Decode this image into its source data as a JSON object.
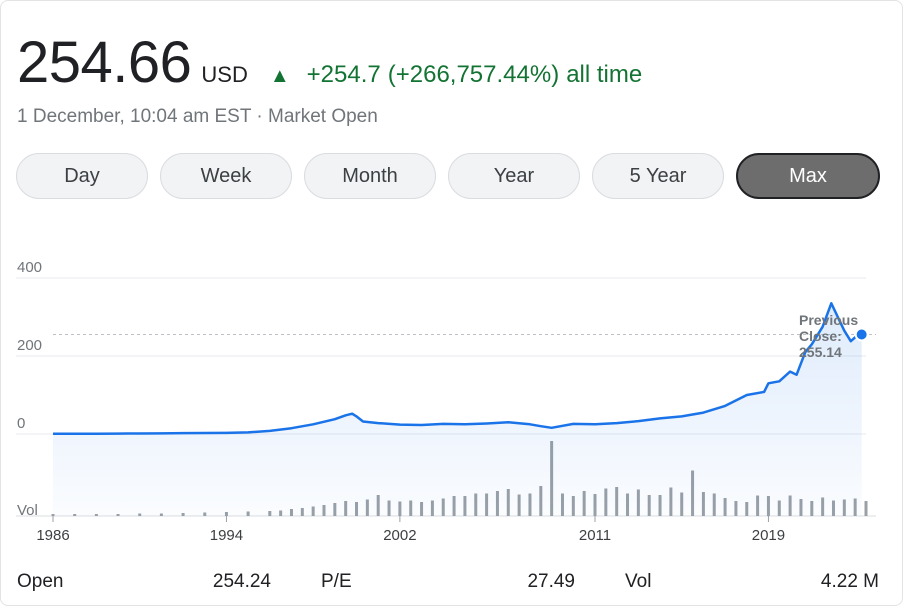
{
  "quote": {
    "price": "254.66",
    "currency": "USD",
    "change_arrow": "▲",
    "change_abs": "+254.7",
    "change_pct": "(+266,757.44%)",
    "change_period": "all time",
    "timestamp": "1 December, 10:04 am EST · Market Open"
  },
  "tabs": [
    {
      "label": "Day",
      "active": false
    },
    {
      "label": "Week",
      "active": false
    },
    {
      "label": "Month",
      "active": false
    },
    {
      "label": "Year",
      "active": false
    },
    {
      "label": "5 Year",
      "active": false
    },
    {
      "label": "Max",
      "active": true
    }
  ],
  "colors": {
    "positive": "#137333",
    "line": "#1a73e8",
    "volume": "#9aa0a6",
    "grid": "#e8eaed"
  },
  "chart_data": {
    "type": "line",
    "y_ticks": [
      "400",
      "200",
      "0"
    ],
    "ylim": [
      0,
      400
    ],
    "x_ticks": [
      "1986",
      "1994",
      "2002",
      "2011",
      "2019"
    ],
    "xlim": [
      1986,
      2023.5
    ],
    "volume_label": "Vol",
    "previous_close_label": [
      "Previous",
      "Close:",
      "255.14"
    ],
    "previous_close": 255.14,
    "grid": true,
    "series": [
      {
        "values": [
          [
            1986.0,
            0.5
          ],
          [
            1987.0,
            0.6
          ],
          [
            1988.0,
            0.7
          ],
          [
            1989.0,
            0.9
          ],
          [
            1990.0,
            1.2
          ],
          [
            1991.0,
            1.6
          ],
          [
            1992.0,
            2.2
          ],
          [
            1993.0,
            2.5
          ],
          [
            1994.0,
            2.8
          ],
          [
            1995.0,
            4.0
          ],
          [
            1996.0,
            8.0
          ],
          [
            1997.0,
            15.0
          ],
          [
            1998.0,
            25.0
          ],
          [
            1999.0,
            38.0
          ],
          [
            1999.5,
            48.0
          ],
          [
            1999.8,
            52.0
          ],
          [
            2000.0,
            45.0
          ],
          [
            2000.3,
            32.0
          ],
          [
            2001.0,
            28.0
          ],
          [
            2002.0,
            24.0
          ],
          [
            2003.0,
            23.0
          ],
          [
            2004.0,
            26.0
          ],
          [
            2005.0,
            25.0
          ],
          [
            2006.0,
            27.0
          ],
          [
            2007.0,
            30.0
          ],
          [
            2008.0,
            25.0
          ],
          [
            2008.5,
            20.0
          ],
          [
            2009.0,
            16.0
          ],
          [
            2010.0,
            26.0
          ],
          [
            2011.0,
            25.0
          ],
          [
            2012.0,
            28.0
          ],
          [
            2013.0,
            33.0
          ],
          [
            2014.0,
            40.0
          ],
          [
            2015.0,
            45.0
          ],
          [
            2016.0,
            55.0
          ],
          [
            2017.0,
            72.0
          ],
          [
            2018.0,
            100.0
          ],
          [
            2018.8,
            108.0
          ],
          [
            2019.0,
            130.0
          ],
          [
            2019.5,
            135.0
          ],
          [
            2020.0,
            160.0
          ],
          [
            2020.3,
            152.0
          ],
          [
            2020.7,
            210.0
          ],
          [
            2021.0,
            230.0
          ],
          [
            2021.5,
            275.0
          ],
          [
            2021.9,
            335.0
          ],
          [
            2022.2,
            300.0
          ],
          [
            2022.5,
            265.0
          ],
          [
            2022.8,
            238.0
          ],
          [
            2023.0,
            248.0
          ],
          [
            2023.3,
            255.14
          ]
        ]
      }
    ],
    "volume": [
      [
        1986.0,
        4
      ],
      [
        1987.0,
        4
      ],
      [
        1988.0,
        4
      ],
      [
        1989.0,
        4
      ],
      [
        1990.0,
        5
      ],
      [
        1991.0,
        5
      ],
      [
        1992.0,
        6
      ],
      [
        1993.0,
        7
      ],
      [
        1994.0,
        8
      ],
      [
        1995.0,
        9
      ],
      [
        1996.0,
        10
      ],
      [
        1996.5,
        11
      ],
      [
        1997.0,
        14
      ],
      [
        1997.5,
        16
      ],
      [
        1998.0,
        19
      ],
      [
        1998.5,
        22
      ],
      [
        1999.0,
        26
      ],
      [
        1999.5,
        30
      ],
      [
        2000.0,
        28
      ],
      [
        2000.5,
        33
      ],
      [
        2001.0,
        42
      ],
      [
        2001.5,
        31
      ],
      [
        2002.0,
        29
      ],
      [
        2002.5,
        31
      ],
      [
        2003.0,
        28
      ],
      [
        2003.5,
        31
      ],
      [
        2004.0,
        35
      ],
      [
        2004.5,
        40
      ],
      [
        2005.0,
        40
      ],
      [
        2005.5,
        45
      ],
      [
        2006.0,
        45
      ],
      [
        2006.5,
        50
      ],
      [
        2007.0,
        54
      ],
      [
        2007.5,
        43
      ],
      [
        2008.0,
        45
      ],
      [
        2008.5,
        60
      ],
      [
        2009.0,
        150
      ],
      [
        2009.5,
        45
      ],
      [
        2010.0,
        40
      ],
      [
        2010.5,
        50
      ],
      [
        2011.0,
        44
      ],
      [
        2011.5,
        55
      ],
      [
        2012.0,
        58
      ],
      [
        2012.5,
        45
      ],
      [
        2013.0,
        53
      ],
      [
        2013.5,
        42
      ],
      [
        2014.0,
        42
      ],
      [
        2014.5,
        57
      ],
      [
        2015.0,
        47
      ],
      [
        2015.5,
        91
      ],
      [
        2016.0,
        48
      ],
      [
        2016.5,
        45
      ],
      [
        2017.0,
        36
      ],
      [
        2017.5,
        30
      ],
      [
        2018.0,
        28
      ],
      [
        2018.5,
        41
      ],
      [
        2019.0,
        40
      ],
      [
        2019.5,
        31
      ],
      [
        2020.0,
        41
      ],
      [
        2020.5,
        34
      ],
      [
        2021.0,
        30
      ],
      [
        2021.5,
        37
      ],
      [
        2022.0,
        31
      ],
      [
        2022.5,
        33
      ],
      [
        2023.0,
        35
      ],
      [
        2023.5,
        30
      ]
    ]
  },
  "stats": [
    {
      "label": "Open",
      "value": "254.24"
    },
    {
      "label": "P/E",
      "value": "27.49"
    },
    {
      "label": "Vol",
      "value": "4.22 M"
    }
  ]
}
